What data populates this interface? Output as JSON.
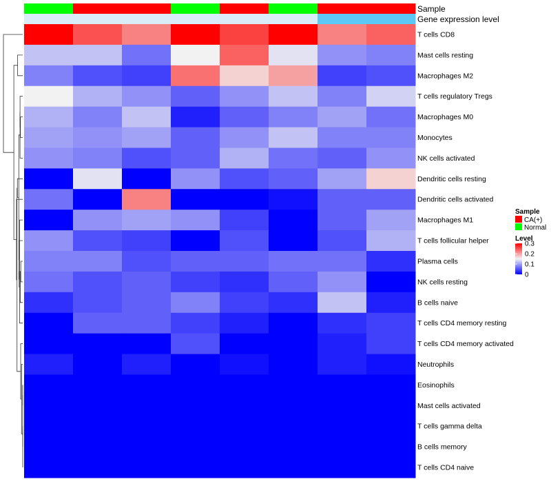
{
  "chart_data": {
    "type": "heatmap",
    "title": "",
    "rows": [
      "T cells CD8",
      "Mast cells resting",
      "Macrophages M2",
      "T cells regulatory  Tregs",
      "Macrophages M0",
      "Monocytes",
      "NK cells activated",
      "Dendritic cells resting",
      "Dendritic cells activated",
      "Macrophages M1",
      "T cells follicular helper",
      "Plasma cells",
      "NK cells resting",
      "B cells naive",
      "T cells CD4 memory resting",
      "T cells CD4 memory activated",
      "Neutrophils",
      "Eosinophils",
      "Mast cells activated",
      "T cells gamma delta",
      "B cells memory",
      "T cells CD4 naive"
    ],
    "columns": [
      {
        "sample": "Normal",
        "gene_expression_level": "low"
      },
      {
        "sample": "CA(+)",
        "gene_expression_level": "low"
      },
      {
        "sample": "CA(+)",
        "gene_expression_level": "low"
      },
      {
        "sample": "Normal",
        "gene_expression_level": "low"
      },
      {
        "sample": "CA(+)",
        "gene_expression_level": "low"
      },
      {
        "sample": "Normal",
        "gene_expression_level": "low"
      },
      {
        "sample": "CA(+)",
        "gene_expression_level": "high"
      },
      {
        "sample": "CA(+)",
        "gene_expression_level": "high"
      }
    ],
    "values": [
      [
        0.3,
        0.25,
        0.22,
        0.3,
        0.26,
        0.3,
        0.22,
        0.24
      ],
      [
        0.12,
        0.12,
        0.07,
        0.15,
        0.24,
        0.14,
        0.09,
        0.08
      ],
      [
        0.08,
        0.05,
        0.04,
        0.23,
        0.17,
        0.2,
        0.04,
        0.05
      ],
      [
        0.15,
        0.11,
        0.09,
        0.06,
        0.09,
        0.12,
        0.08,
        0.13
      ],
      [
        0.11,
        0.08,
        0.12,
        0.02,
        0.06,
        0.08,
        0.1,
        0.07
      ],
      [
        0.1,
        0.09,
        0.1,
        0.06,
        0.09,
        0.12,
        0.08,
        0.08
      ],
      [
        0.09,
        0.08,
        0.05,
        0.06,
        0.11,
        0.07,
        0.06,
        0.09
      ],
      [
        0.0,
        0.14,
        0.0,
        0.09,
        0.05,
        0.06,
        0.1,
        0.17
      ],
      [
        0.07,
        0.0,
        0.22,
        0.0,
        0.0,
        0.01,
        0.06,
        0.06
      ],
      [
        0.0,
        0.09,
        0.1,
        0.09,
        0.04,
        0.0,
        0.06,
        0.1
      ],
      [
        0.09,
        0.05,
        0.04,
        0.0,
        0.05,
        0.0,
        0.05,
        0.11
      ],
      [
        0.08,
        0.08,
        0.05,
        0.06,
        0.06,
        0.07,
        0.07,
        0.03
      ],
      [
        0.07,
        0.05,
        0.06,
        0.04,
        0.03,
        0.06,
        0.09,
        0.0
      ],
      [
        0.03,
        0.05,
        0.06,
        0.08,
        0.04,
        0.03,
        0.12,
        0.02
      ],
      [
        0.0,
        0.06,
        0.06,
        0.04,
        0.02,
        0.0,
        0.03,
        0.04
      ],
      [
        0.0,
        0.0,
        0.0,
        0.05,
        0.0,
        0.0,
        0.02,
        0.04
      ],
      [
        0.02,
        0.0,
        0.02,
        0.0,
        0.01,
        0.0,
        0.02,
        0.01
      ],
      [
        0.0,
        0.0,
        0.0,
        0.0,
        0.0,
        0.0,
        0.0,
        0.0
      ],
      [
        0.0,
        0.0,
        0.0,
        0.0,
        0.0,
        0.0,
        0.0,
        0.0
      ],
      [
        0.0,
        0.0,
        0.0,
        0.0,
        0.0,
        0.0,
        0.0,
        0.0
      ],
      [
        0.0,
        0.0,
        0.0,
        0.0,
        0.0,
        0.0,
        0.0,
        0.0
      ],
      [
        0.0,
        0.0,
        0.0,
        0.0,
        0.0,
        0.0,
        0.0,
        0.0
      ]
    ],
    "value_range": [
      0,
      0.3
    ],
    "color_scale": {
      "low": "#0000ff",
      "mid": "#f2f2f2",
      "high": "#ff0000",
      "mid_value": 0.15
    },
    "annotations": {
      "sample_label": "Sample",
      "expression_label": "Gene expression level",
      "sample_colors": {
        "CA(+)": "#ff0000",
        "Normal": "#00ff00"
      },
      "expression_colors": {
        "low": "#d9ecf7",
        "high": "#5bc8f5"
      }
    },
    "legends": {
      "sample": {
        "title": "Sample",
        "entries": [
          "CA(+)",
          "Normal"
        ]
      },
      "level": {
        "title": "Level",
        "ticks": [
          "0.3",
          "0.2",
          "0.1",
          "0"
        ],
        "tick_values": [
          0.3,
          0.2,
          0.1,
          0
        ]
      }
    }
  }
}
